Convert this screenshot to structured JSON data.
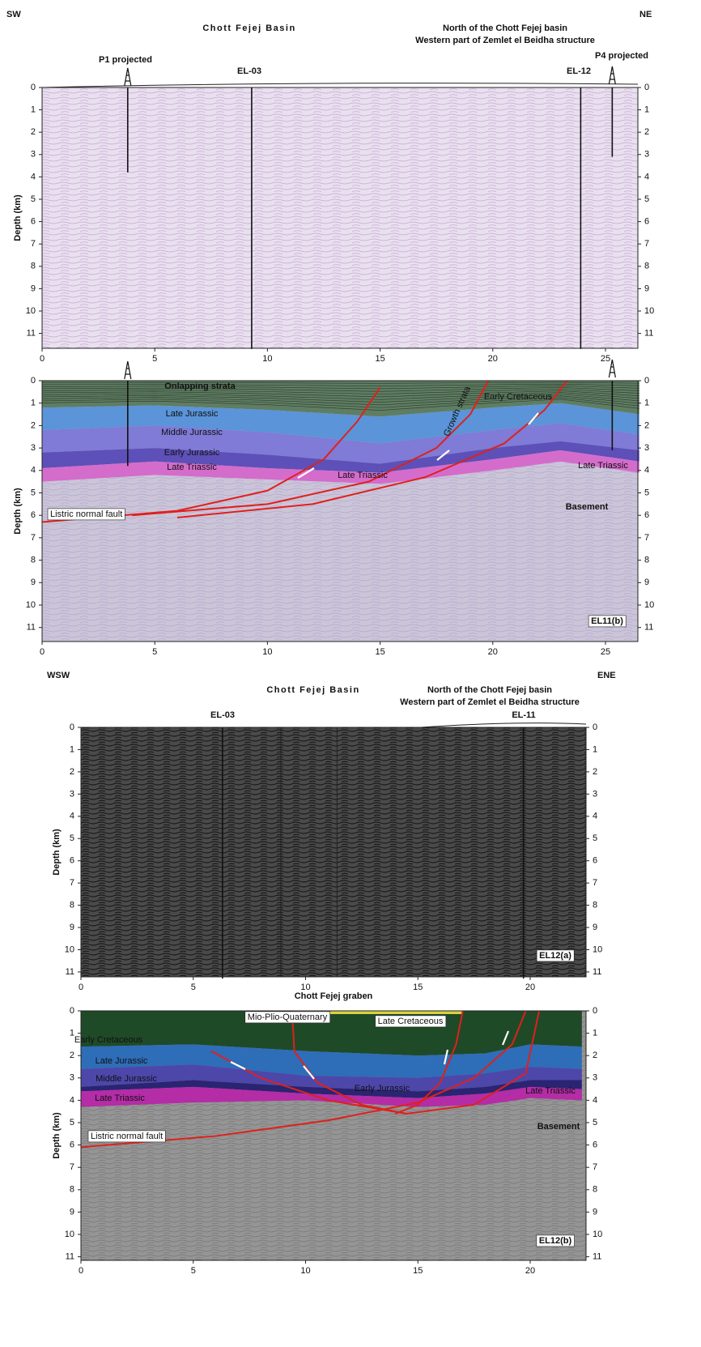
{
  "top": {
    "left": "SW",
    "right": "NE",
    "basin": "Chott Fejej Basin",
    "north": "North of the Chott Fejej basin",
    "west": "Western part of Zemlet el Beidha structure"
  },
  "panel_a": {
    "wells": [
      "P1 projected",
      "EL-03",
      "EL-12",
      "P4 projected"
    ],
    "y_label": "Depth (km)",
    "yticks": [
      0,
      1,
      2,
      3,
      4,
      5,
      6,
      7,
      8,
      9,
      10,
      11
    ],
    "xticks": [
      0,
      5,
      10,
      15,
      20,
      25
    ]
  },
  "panel_b": {
    "labels": [
      "Onlapping strata",
      "Late Jurassic",
      "Middle Jurassic",
      "Early Jurassic",
      "Late Triassic",
      "Late Triassic",
      "Late Triassic",
      "Growth strata",
      "Early Cretaceous",
      "Basement",
      "Listric normal fault"
    ],
    "tag": "EL11(b)",
    "y_label": "Depth (km)",
    "yticks": [
      0,
      1,
      2,
      3,
      4,
      5,
      6,
      7,
      8,
      9,
      10,
      11
    ],
    "xticks": [
      0,
      5,
      10,
      15,
      20,
      25
    ]
  },
  "bottom": {
    "left": "WSW",
    "right": "ENE",
    "basin": "Chott Fejej Basin",
    "north": "North of the Chott Fejej basin",
    "west": "Western part of Zemlet el Beidha structure"
  },
  "panel_c": {
    "wells": [
      "EL-03",
      "EL-11"
    ],
    "tag": "EL12(a)",
    "y_label": "Depth (km)",
    "yticks": [
      0,
      1,
      2,
      3,
      4,
      5,
      6,
      7,
      8,
      9,
      10,
      11
    ],
    "xticks": [
      0,
      5,
      10,
      15,
      20
    ]
  },
  "panel_d": {
    "title": "Chott Fejej graben",
    "labels": [
      "Mio-Plio-Quaternary",
      "Late Cretaceous",
      "Early Cretaceous",
      "Late Jurassic",
      "Middle Jurassic",
      "Late Triassic",
      "Early Jurassic",
      "Late Triassic",
      "Basement",
      "Listric normal fault"
    ],
    "tag": "EL12(b)",
    "y_label": "Depth (km)",
    "yticks": [
      0,
      1,
      2,
      3,
      4,
      5,
      6,
      7,
      8,
      9,
      10,
      11
    ],
    "xticks": [
      0,
      5,
      10,
      15,
      20
    ]
  }
}
